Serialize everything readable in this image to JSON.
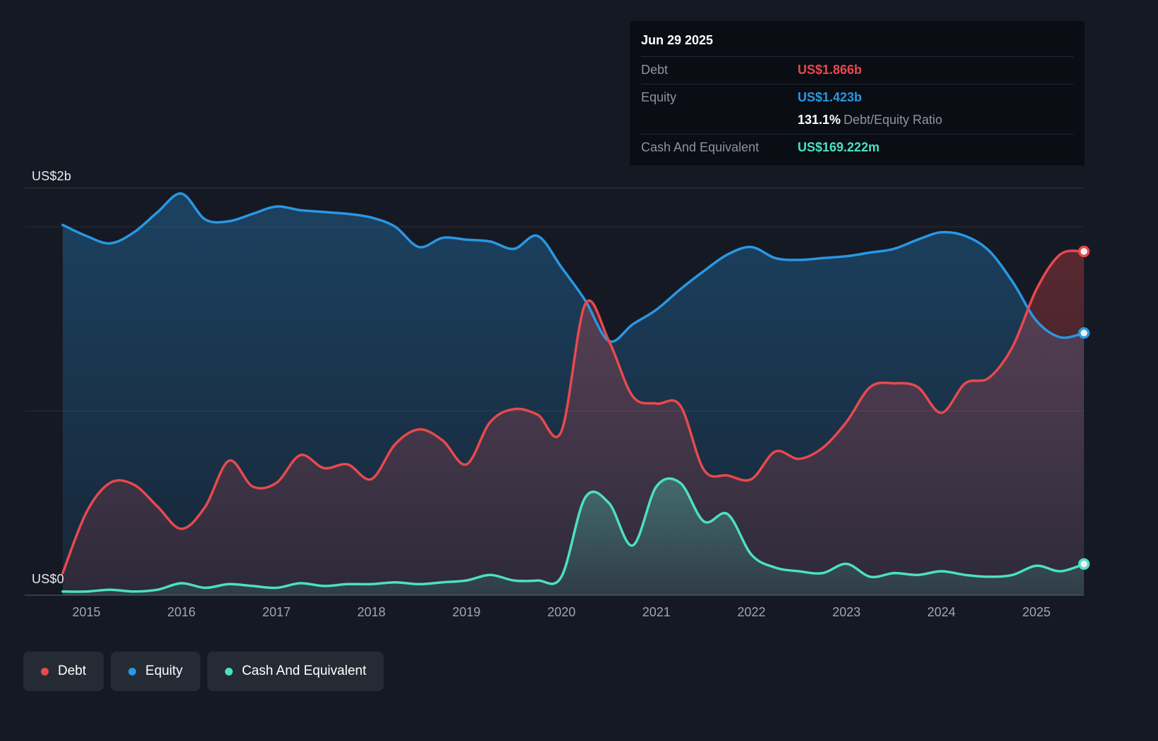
{
  "tooltip": {
    "date": "Jun 29 2025",
    "debt": {
      "label": "Debt",
      "value": "US$1.866b",
      "color": "#e8494d"
    },
    "equity": {
      "label": "Equity",
      "value": "US$1.423b",
      "color": "#2a97e3"
    },
    "ratio": {
      "value": "131.1%",
      "label": "Debt/Equity Ratio"
    },
    "cash": {
      "label": "Cash And Equivalent",
      "value": "US$169.222m",
      "color": "#4ce0c3"
    }
  },
  "legend": {
    "items": [
      {
        "label": "Debt",
        "color": "#e8494d"
      },
      {
        "label": "Equity",
        "color": "#2a97e3"
      },
      {
        "label": "Cash And Equivalent",
        "color": "#4ce0c3"
      }
    ]
  },
  "chart_data": {
    "type": "area",
    "title": "Debt to Equity history",
    "unit": "US$ billions",
    "grid": true,
    "legend_position": "bottom-left",
    "xlim": [
      2014.35,
      2025.5
    ],
    "ylim": [
      0,
      2.21
    ],
    "gridlines": [
      2.0,
      1.0
    ],
    "y_ticks": [
      {
        "value": 2.0,
        "label": "US$2b"
      },
      {
        "value": 0,
        "label": "US$0"
      }
    ],
    "x_ticks": [
      {
        "value": 2015,
        "label": "2015"
      },
      {
        "value": 2016,
        "label": "2016"
      },
      {
        "value": 2017,
        "label": "2017"
      },
      {
        "value": 2018,
        "label": "2018"
      },
      {
        "value": 2019,
        "label": "2019"
      },
      {
        "value": 2020,
        "label": "2020"
      },
      {
        "value": 2021,
        "label": "2021"
      },
      {
        "value": 2022,
        "label": "2022"
      },
      {
        "value": 2023,
        "label": "2023"
      },
      {
        "value": 2024,
        "label": "2024"
      },
      {
        "value": 2025,
        "label": "2025"
      }
    ],
    "x": [
      2014.75,
      2015,
      2015.25,
      2015.5,
      2015.75,
      2016,
      2016.25,
      2016.5,
      2016.75,
      2017,
      2017.25,
      2017.5,
      2017.75,
      2018,
      2018.25,
      2018.5,
      2018.75,
      2019,
      2019.25,
      2019.5,
      2019.75,
      2020,
      2020.25,
      2020.5,
      2020.75,
      2021,
      2021.25,
      2021.5,
      2021.75,
      2022,
      2022.25,
      2022.5,
      2022.75,
      2023,
      2023.25,
      2023.5,
      2023.75,
      2024,
      2024.25,
      2024.5,
      2024.75,
      2025,
      2025.25,
      2025.5
    ],
    "series": [
      {
        "name": "Equity",
        "color": "#2a97e3",
        "values": [
          2.01,
          1.95,
          1.91,
          1.97,
          2.08,
          2.18,
          2.04,
          2.03,
          2.07,
          2.11,
          2.09,
          2.08,
          2.07,
          2.05,
          2.0,
          1.89,
          1.94,
          1.93,
          1.92,
          1.88,
          1.95,
          1.78,
          1.6,
          1.38,
          1.47,
          1.55,
          1.66,
          1.76,
          1.85,
          1.89,
          1.83,
          1.82,
          1.83,
          1.84,
          1.86,
          1.88,
          1.93,
          1.97,
          1.95,
          1.87,
          1.7,
          1.49,
          1.4,
          1.423
        ]
      },
      {
        "name": "Debt",
        "color": "#e8494d",
        "values": [
          0.12,
          0.45,
          0.61,
          0.6,
          0.48,
          0.36,
          0.48,
          0.73,
          0.59,
          0.61,
          0.76,
          0.69,
          0.71,
          0.63,
          0.82,
          0.9,
          0.84,
          0.71,
          0.94,
          1.01,
          0.98,
          0.89,
          1.58,
          1.38,
          1.08,
          1.04,
          1.03,
          0.68,
          0.65,
          0.63,
          0.78,
          0.74,
          0.8,
          0.94,
          1.13,
          1.15,
          1.13,
          0.99,
          1.15,
          1.18,
          1.35,
          1.66,
          1.85,
          1.866
        ]
      },
      {
        "name": "Cash And Equivalent",
        "color": "#4ce0c3",
        "values": [
          0.02,
          0.02,
          0.03,
          0.02,
          0.03,
          0.065,
          0.04,
          0.06,
          0.05,
          0.04,
          0.065,
          0.05,
          0.06,
          0.06,
          0.07,
          0.06,
          0.07,
          0.08,
          0.11,
          0.08,
          0.08,
          0.1,
          0.53,
          0.5,
          0.27,
          0.59,
          0.61,
          0.4,
          0.44,
          0.22,
          0.15,
          0.13,
          0.12,
          0.17,
          0.1,
          0.12,
          0.11,
          0.13,
          0.11,
          0.1,
          0.11,
          0.16,
          0.13,
          0.169
        ]
      }
    ]
  }
}
